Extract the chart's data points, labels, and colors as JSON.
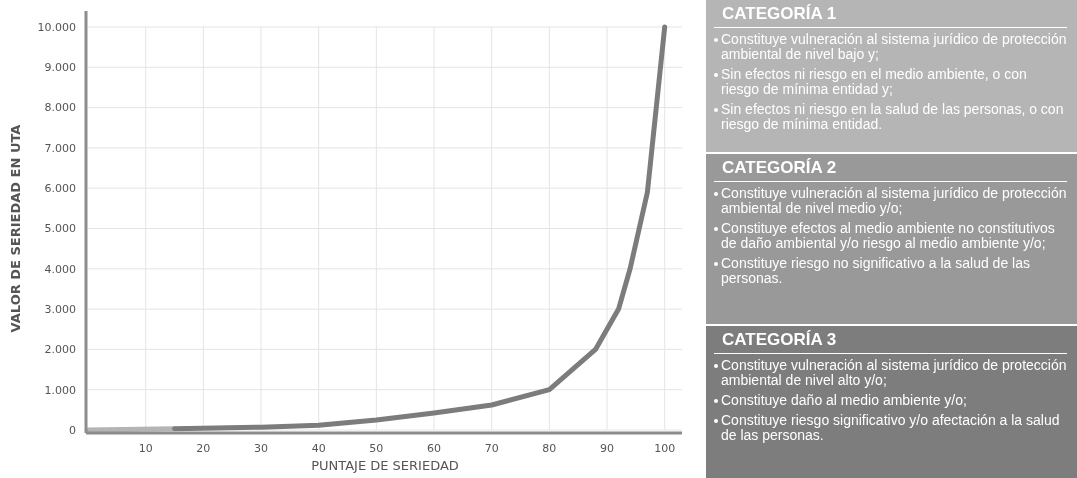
{
  "chart_data": [
    {
      "type": "line",
      "xlabel": "PUNTAJE DE SERIEDAD",
      "ylabel": "VALOR DE SERIEDAD EN UTA",
      "xlim": [
        0,
        103
      ],
      "xticks": [
        10,
        20,
        30,
        40,
        50,
        60,
        70,
        80,
        90,
        100
      ],
      "ylim": [
        0,
        10000
      ],
      "yticks": [
        0,
        {
          "value": 1000,
          "label": "1.000"
        },
        {
          "value": 2000,
          "label": "2.000"
        },
        {
          "value": 3000,
          "label": "3.000"
        },
        {
          "value": 4000,
          "label": "4.000"
        },
        {
          "value": 5000,
          "label": "5.000"
        },
        {
          "value": 6000,
          "label": "6.000"
        },
        {
          "value": 7000,
          "label": "7.000"
        },
        {
          "value": 8000,
          "label": "8.000"
        },
        {
          "value": 9000,
          "label": "9.000"
        },
        {
          "value": 10000,
          "label": "10.000"
        }
      ],
      "grid": true,
      "line_style": "solid",
      "series": [
        {
          "color": "#b4b4b4",
          "x": [
            0,
            15
          ],
          "values": [
            0,
            30
          ]
        },
        {
          "color": "#7c7c7c",
          "x": [
            15,
            30,
            40,
            50,
            60,
            70,
            80,
            88,
            92,
            94,
            97,
            100
          ],
          "values": [
            30,
            70,
            120,
            250,
            420,
            620,
            1000,
            2000,
            3000,
            4000,
            5900,
            10000
          ]
        }
      ]
    },
    {
      "type": "other",
      "title": "CATEGORÍA 1",
      "annotations": [
        "Constituye vulneración al sistema jurídico de protección ambiental de nivel bajo y;",
        "Sin efectos ni riesgo en el medio ambiente, o con riesgo de mínima entidad y;",
        "Sin efectos ni riesgo en la salud de las personas, o con riesgo de mínima entidad."
      ]
    },
    {
      "type": "other",
      "title": "CATEGORÍA 2",
      "annotations": [
        "Constituye vulneración al sistema jurídico de protección ambiental de nivel medio y/o;",
        "Constituye efectos al medio ambiente no constitutivos de daño ambiental y/o riesgo al medio ambiente y/o;",
        "Constituye riesgo no significativo a la salud de las personas."
      ]
    },
    {
      "type": "other",
      "title": "CATEGORÍA 3",
      "annotations": [
        "Constituye vulneración al sistema jurídico de protección ambiental de nivel alto y/o;",
        "Constituye daño al medio ambiente y/o;",
        "Constituye riesgo significativo y/o afectación a la salud de las personas."
      ]
    }
  ]
}
